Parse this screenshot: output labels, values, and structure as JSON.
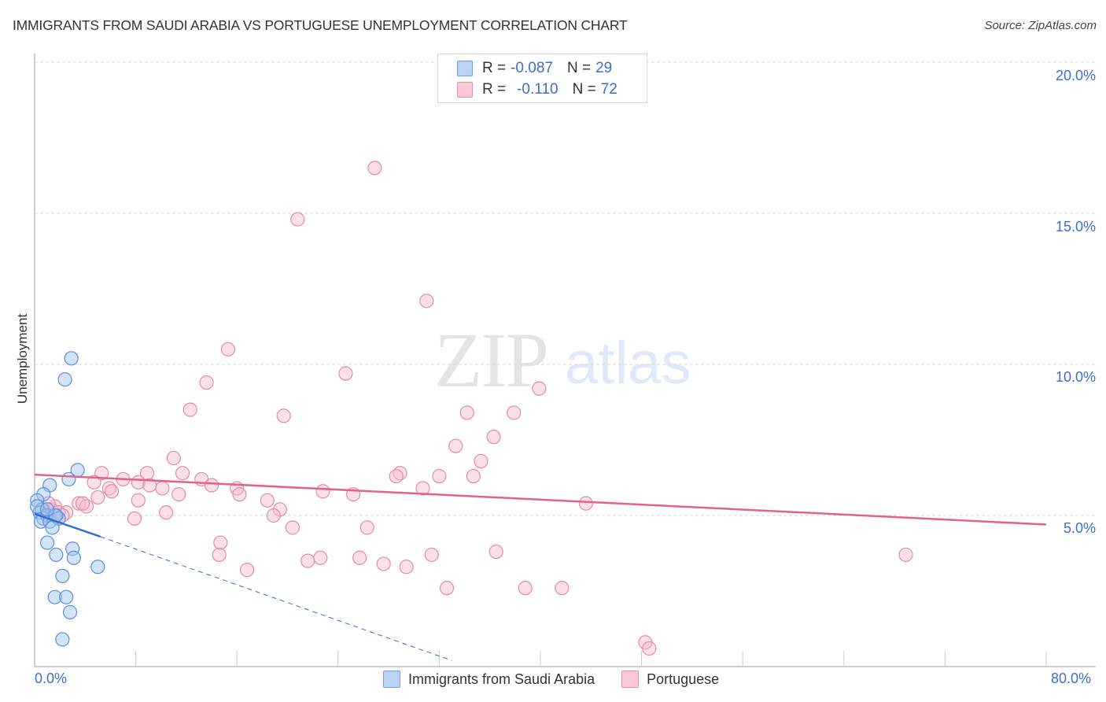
{
  "title": "IMMIGRANTS FROM SAUDI ARABIA VS PORTUGUESE UNEMPLOYMENT CORRELATION CHART",
  "source": "Source: ZipAtlas.com",
  "watermark": {
    "zip": "ZIP",
    "atlas": "atlas"
  },
  "axes": {
    "ylabel": "Unemployment",
    "y_ticks": [
      {
        "label": "20.0%",
        "value": 20
      },
      {
        "label": "15.0%",
        "value": 15
      },
      {
        "label": "10.0%",
        "value": 10
      },
      {
        "label": "5.0%",
        "value": 5
      }
    ],
    "x_min_label": "0.0%",
    "x_max_label": "80.0%"
  },
  "legend": {
    "rows": [
      {
        "r_label": "R = ",
        "r_value": "-0.087",
        "n_label": "N = ",
        "n_value": "29",
        "color": "#b9d3f5",
        "border": "#6e9fe0"
      },
      {
        "r_label": "R = ",
        "r_value": "-0.110",
        "n_label": "N = ",
        "n_value": "72",
        "color": "#f9c9d7",
        "border": "#ea8eab"
      }
    ],
    "bottom": [
      {
        "label": "Immigrants from Saudi Arabia",
        "color": "#b9d3f5",
        "border": "#6e9fe0"
      },
      {
        "label": "Portuguese",
        "color": "#f9c9d7",
        "border": "#ea8eab"
      }
    ]
  },
  "colors": {
    "blue_fill": "rgba(160,196,240,0.45)",
    "blue_stroke": "#5b8fd9",
    "blue_line": "#2a6fd6",
    "pink_fill": "rgba(247,186,206,0.45)",
    "pink_stroke": "#e58aa8",
    "pink_line": "#e2628d",
    "tick_text": "#3a6fc8"
  },
  "chart_data": {
    "type": "scatter",
    "title": "IMMIGRANTS FROM SAUDI ARABIA VS PORTUGUESE UNEMPLOYMENT CORRELATION CHART",
    "xlabel": "",
    "ylabel": "Unemployment",
    "xlim": [
      0,
      80
    ],
    "ylim": [
      0,
      20
    ],
    "x_tick_labels": [
      "0.0%",
      "80.0%"
    ],
    "y_tick_labels": [
      "5.0%",
      "10.0%",
      "15.0%",
      "20.0%"
    ],
    "grid": true,
    "legend_position": "top-center (stats) and bottom-center (series)",
    "series": [
      {
        "name": "Immigrants from Saudi Arabia",
        "R": -0.087,
        "N": 29,
        "points": [
          [
            2.9,
            10.2
          ],
          [
            2.4,
            9.5
          ],
          [
            3.4,
            6.5
          ],
          [
            2.7,
            6.2
          ],
          [
            1.2,
            6.0
          ],
          [
            0.7,
            5.7
          ],
          [
            0.2,
            5.5
          ],
          [
            0.6,
            5.2
          ],
          [
            0.4,
            5.1
          ],
          [
            0.7,
            4.9
          ],
          [
            1.0,
            5.0
          ],
          [
            0.5,
            4.8
          ],
          [
            1.2,
            4.8
          ],
          [
            1.6,
            5.0
          ],
          [
            1.9,
            4.9
          ],
          [
            1.7,
            5.0
          ],
          [
            1.4,
            4.6
          ],
          [
            1.0,
            4.1
          ],
          [
            1.7,
            3.7
          ],
          [
            3.0,
            3.9
          ],
          [
            3.1,
            3.6
          ],
          [
            5.0,
            3.3
          ],
          [
            2.2,
            3.0
          ],
          [
            1.6,
            2.3
          ],
          [
            2.5,
            2.3
          ],
          [
            2.8,
            1.8
          ],
          [
            2.2,
            0.9
          ],
          [
            0.2,
            5.3
          ],
          [
            1.0,
            5.2
          ]
        ],
        "trend": {
          "x0": 0,
          "y0": 5.05,
          "x1": 5.2,
          "y1": 4.3,
          "dashed_extension_to": [
            33.0,
            0.2
          ]
        }
      },
      {
        "name": "Portuguese",
        "R": -0.11,
        "N": 72,
        "points": [
          [
            26.9,
            16.5
          ],
          [
            20.8,
            14.8
          ],
          [
            31.0,
            12.1
          ],
          [
            15.3,
            10.5
          ],
          [
            24.6,
            9.7
          ],
          [
            13.6,
            9.4
          ],
          [
            39.9,
            9.2
          ],
          [
            12.3,
            8.5
          ],
          [
            19.7,
            8.3
          ],
          [
            34.2,
            8.4
          ],
          [
            37.9,
            8.4
          ],
          [
            36.3,
            7.6
          ],
          [
            33.3,
            7.3
          ],
          [
            11.0,
            6.9
          ],
          [
            35.3,
            6.8
          ],
          [
            5.3,
            6.4
          ],
          [
            8.9,
            6.4
          ],
          [
            11.7,
            6.4
          ],
          [
            28.9,
            6.4
          ],
          [
            7.0,
            6.2
          ],
          [
            28.6,
            6.3
          ],
          [
            32.0,
            6.3
          ],
          [
            34.7,
            6.3
          ],
          [
            13.2,
            6.2
          ],
          [
            14.0,
            6.0
          ],
          [
            8.2,
            6.1
          ],
          [
            4.7,
            6.1
          ],
          [
            10.1,
            5.9
          ],
          [
            16.0,
            5.9
          ],
          [
            9.1,
            6.0
          ],
          [
            30.7,
            5.9
          ],
          [
            5.9,
            5.9
          ],
          [
            6.1,
            5.8
          ],
          [
            16.2,
            5.7
          ],
          [
            22.8,
            5.8
          ],
          [
            11.4,
            5.7
          ],
          [
            25.2,
            5.7
          ],
          [
            8.2,
            5.5
          ],
          [
            18.4,
            5.5
          ],
          [
            5.0,
            5.6
          ],
          [
            3.5,
            5.4
          ],
          [
            4.1,
            5.3
          ],
          [
            3.8,
            5.4
          ],
          [
            1.6,
            5.3
          ],
          [
            1.3,
            5.2
          ],
          [
            1.9,
            5.1
          ],
          [
            2.5,
            5.1
          ],
          [
            43.6,
            5.4
          ],
          [
            19.4,
            5.2
          ],
          [
            10.4,
            5.1
          ],
          [
            18.9,
            5.0
          ],
          [
            7.9,
            4.9
          ],
          [
            20.4,
            4.6
          ],
          [
            26.3,
            4.6
          ],
          [
            2.2,
            5.0
          ],
          [
            1.1,
            5.4
          ],
          [
            14.7,
            4.1
          ],
          [
            14.6,
            3.7
          ],
          [
            36.5,
            3.8
          ],
          [
            31.4,
            3.7
          ],
          [
            68.9,
            3.7
          ],
          [
            21.6,
            3.5
          ],
          [
            22.6,
            3.6
          ],
          [
            25.7,
            3.6
          ],
          [
            27.6,
            3.4
          ],
          [
            29.4,
            3.3
          ],
          [
            16.8,
            3.2
          ],
          [
            32.6,
            2.6
          ],
          [
            38.8,
            2.6
          ],
          [
            41.7,
            2.6
          ],
          [
            48.3,
            0.8
          ],
          [
            48.6,
            0.6
          ]
        ],
        "trend": {
          "x0": 0,
          "y0": 6.35,
          "x1": 80,
          "y1": 4.7
        }
      }
    ]
  }
}
